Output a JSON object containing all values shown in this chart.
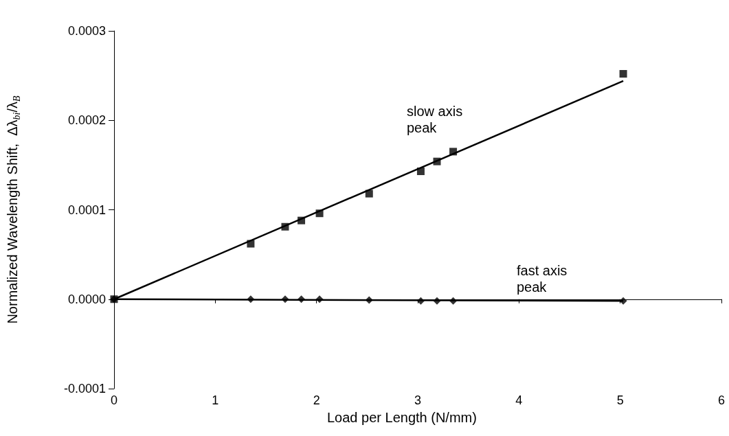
{
  "chart_data": {
    "type": "scatter",
    "xlabel": "Load per Length (N/mm)",
    "ylabel": "Normalized Wavelength Shift,  Δλ$_{bi}$/λ$_{B}$",
    "xlim": [
      0,
      6
    ],
    "xticks": [
      0,
      1,
      2,
      3,
      4,
      5,
      6
    ],
    "ylim": [
      -0.0001,
      0.0003
    ],
    "yticks": [
      -0.0001,
      {
        "value": 0,
        "label": "0.0000"
      },
      0.0001,
      0.0002,
      0.0003
    ],
    "series": [
      {
        "marker": "square",
        "color": "#000000",
        "x": [
          0,
          1.35,
          1.69,
          1.85,
          2.03,
          2.52,
          3.03,
          3.19,
          3.35,
          5.03
        ],
        "values": [
          0,
          6.2e-05,
          8.1e-05,
          8.8e-05,
          9.6e-05,
          0.000118,
          0.000143,
          0.000154,
          0.000165,
          0.000252
        ]
      },
      {
        "type": "line",
        "marker": "none",
        "color": "#000000",
        "x": [
          0,
          5.03
        ],
        "values": [
          0,
          0.000244
        ]
      },
      {
        "marker": "diamond",
        "color": "#000000",
        "x": [
          0,
          1.35,
          1.69,
          1.85,
          2.03,
          2.52,
          3.03,
          3.19,
          3.35,
          5.03
        ],
        "values": [
          0,
          0,
          0,
          0,
          0,
          -1e-06,
          -2e-06,
          -2e-06,
          -2e-06,
          -2e-06
        ]
      },
      {
        "type": "line",
        "marker": "none",
        "color": "#000000",
        "x": [
          0,
          5.03
        ],
        "values": [
          0,
          -2e-06
        ]
      }
    ],
    "annotations": [
      "slow axis peak",
      "fast axis peak"
    ]
  }
}
